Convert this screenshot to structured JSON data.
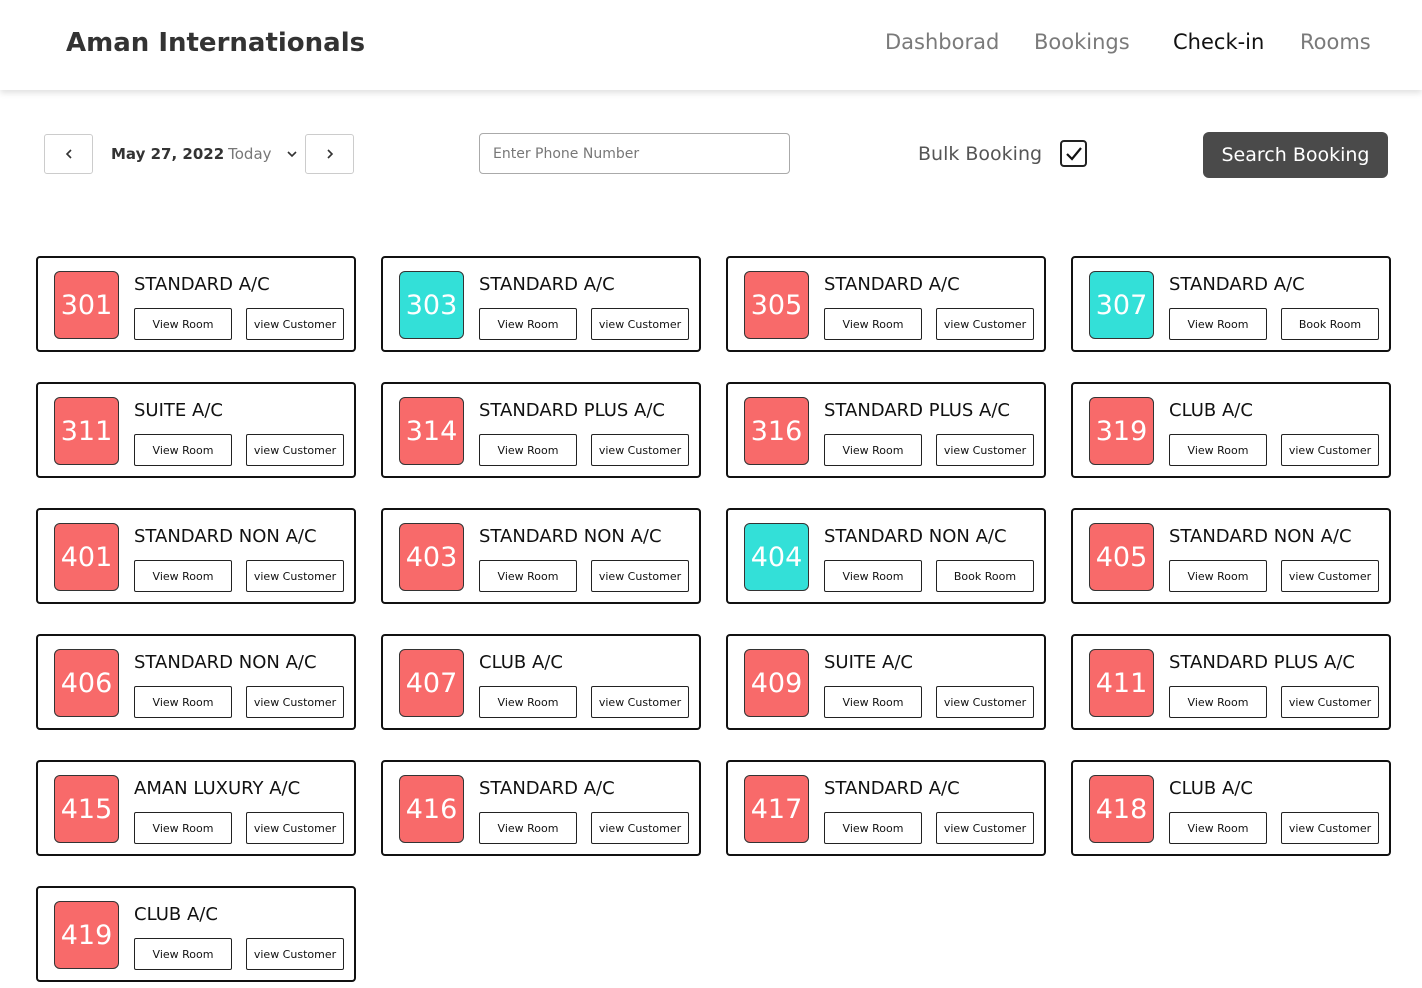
{
  "header": {
    "title": "Aman Internationals",
    "nav": [
      "Dashborad",
      "Bookings",
      "Check-in",
      "Rooms"
    ],
    "active_nav": 2
  },
  "toolbar": {
    "date": "May 27, 2022",
    "date_note": "Today",
    "phone_placeholder": "Enter Phone Number",
    "bulk_label": "Bulk Booking",
    "bulk_checked": true,
    "search_button": "Search Booking"
  },
  "rooms": [
    {
      "number": "301",
      "type": "STANDARD A/C",
      "color": "#f86a6a",
      "buttons": [
        "View Room",
        "view Customer"
      ]
    },
    {
      "number": "303",
      "type": "STANDARD A/C",
      "color": "#33e0d8",
      "buttons": [
        "View Room",
        "view Customer"
      ]
    },
    {
      "number": "305",
      "type": "STANDARD A/C",
      "color": "#f86a6a",
      "buttons": [
        "View Room",
        "view Customer"
      ]
    },
    {
      "number": "307",
      "type": "STANDARD A/C",
      "color": "#33e0d8",
      "buttons": [
        "View Room",
        "Book Room"
      ]
    },
    {
      "number": "311",
      "type": "SUITE A/C",
      "color": "#f86a6a",
      "buttons": [
        "View Room",
        "view Customer"
      ]
    },
    {
      "number": "314",
      "type": "STANDARD PLUS A/C",
      "color": "#f86a6a",
      "buttons": [
        "View Room",
        "view Customer"
      ]
    },
    {
      "number": "316",
      "type": "STANDARD PLUS A/C",
      "color": "#f86a6a",
      "buttons": [
        "View Room",
        "view Customer"
      ]
    },
    {
      "number": "319",
      "type": "CLUB A/C",
      "color": "#f86a6a",
      "buttons": [
        "View Room",
        "view Customer"
      ]
    },
    {
      "number": "401",
      "type": "STANDARD NON A/C",
      "color": "#f86a6a",
      "buttons": [
        "View Room",
        "view Customer"
      ]
    },
    {
      "number": "403",
      "type": "STANDARD NON A/C",
      "color": "#f86a6a",
      "buttons": [
        "View Room",
        "view Customer"
      ]
    },
    {
      "number": "404",
      "type": "STANDARD NON A/C",
      "color": "#33e0d8",
      "buttons": [
        "View Room",
        "Book Room"
      ]
    },
    {
      "number": "405",
      "type": "STANDARD NON A/C",
      "color": "#f86a6a",
      "buttons": [
        "View Room",
        "view Customer"
      ]
    },
    {
      "number": "406",
      "type": "STANDARD NON A/C",
      "color": "#f86a6a",
      "buttons": [
        "View Room",
        "view Customer"
      ]
    },
    {
      "number": "407",
      "type": "CLUB A/C",
      "color": "#f86a6a",
      "buttons": [
        "View Room",
        "view Customer"
      ]
    },
    {
      "number": "409",
      "type": "SUITE A/C",
      "color": "#f86a6a",
      "buttons": [
        "View Room",
        "view Customer"
      ]
    },
    {
      "number": "411",
      "type": "STANDARD PLUS A/C",
      "color": "#f86a6a",
      "buttons": [
        "View Room",
        "view Customer"
      ]
    },
    {
      "number": "415",
      "type": "AMAN LUXURY A/C",
      "color": "#f86a6a",
      "buttons": [
        "View Room",
        "view Customer"
      ]
    },
    {
      "number": "416",
      "type": "STANDARD A/C",
      "color": "#f86a6a",
      "buttons": [
        "View Room",
        "view Customer"
      ]
    },
    {
      "number": "417",
      "type": "STANDARD A/C",
      "color": "#f86a6a",
      "buttons": [
        "View Room",
        "view Customer"
      ]
    },
    {
      "number": "418",
      "type": "CLUB A/C",
      "color": "#f86a6a",
      "buttons": [
        "View Room",
        "view Customer"
      ]
    },
    {
      "number": "419",
      "type": "CLUB A/C",
      "color": "#f86a6a",
      "buttons": [
        "View Room",
        "view Customer"
      ]
    }
  ]
}
